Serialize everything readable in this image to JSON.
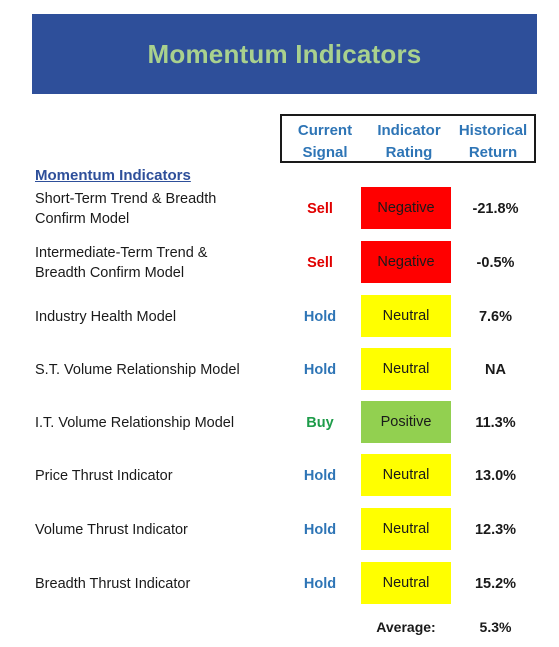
{
  "title": "Momentum Indicators",
  "header": {
    "signal": [
      "Current",
      "Signal"
    ],
    "rating": [
      "Indicator",
      "Rating"
    ],
    "return": [
      "Historical",
      "Return"
    ]
  },
  "section_title": "Momentum Indicators",
  "colors": {
    "banner": "#2e4f9a",
    "banner_text": "#a9d18e",
    "sell": "#e00000",
    "hold": "#2e75b6",
    "buy": "#1e9c4a",
    "negative_bg": "#ff0000",
    "neutral_bg": "#ffff00",
    "positive_bg": "#92d050"
  },
  "rows": [
    {
      "label": [
        "Short-Term Trend & Breadth",
        "Confirm Model"
      ],
      "signal": "Sell",
      "rating": "Negative",
      "return": "-21.8%"
    },
    {
      "label": [
        "Intermediate-Term Trend &",
        "Breadth Confirm Model"
      ],
      "signal": "Sell",
      "rating": "Negative",
      "return": "-0.5%"
    },
    {
      "label": [
        "Industry Health Model"
      ],
      "signal": "Hold",
      "rating": "Neutral",
      "return": "7.6%"
    },
    {
      "label": [
        "S.T. Volume Relationship Model"
      ],
      "signal": "Hold",
      "rating": "Neutral",
      "return": "NA"
    },
    {
      "label": [
        "I.T. Volume Relationship Model"
      ],
      "signal": "Buy",
      "rating": "Positive",
      "return": "11.3%"
    },
    {
      "label": [
        "Price Thrust Indicator"
      ],
      "signal": "Hold",
      "rating": "Neutral",
      "return": "13.0%"
    },
    {
      "label": [
        "Volume Thrust Indicator"
      ],
      "signal": "Hold",
      "rating": "Neutral",
      "return": "12.3%"
    },
    {
      "label": [
        "Breadth Thrust Indicator"
      ],
      "signal": "Hold",
      "rating": "Neutral",
      "return": "15.2%"
    }
  ],
  "average": {
    "label": "Average:",
    "value": "5.3%"
  }
}
